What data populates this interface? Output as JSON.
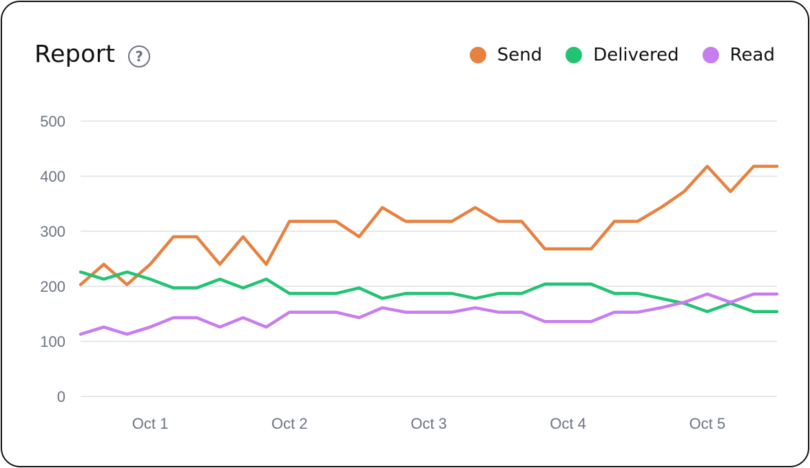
{
  "header": {
    "title": "Report",
    "help_icon": "question-circle-icon"
  },
  "legend": [
    {
      "label": "Send",
      "color": "#e8803f"
    },
    {
      "label": "Delivered",
      "color": "#22c373"
    },
    {
      "label": "Read",
      "color": "#c77cf0"
    }
  ],
  "chart_data": {
    "type": "line",
    "ylim": [
      0,
      500
    ],
    "yticks": [
      0,
      100,
      200,
      300,
      400,
      500
    ],
    "xticks": [
      {
        "label": "Oct 1",
        "at": 3
      },
      {
        "label": "Oct 2",
        "at": 9
      },
      {
        "label": "Oct 3",
        "at": 15
      },
      {
        "label": "Oct 4",
        "at": 21
      },
      {
        "label": "Oct 5",
        "at": 27
      }
    ],
    "grid": true,
    "legend_position": "top-right",
    "series": [
      {
        "name": "Send",
        "color": "#e8803f",
        "values": [
          203,
          240,
          203,
          240,
          290,
          290,
          240,
          290,
          240,
          318,
          318,
          318,
          290,
          343,
          318,
          318,
          318,
          343,
          318,
          318,
          268,
          268,
          268,
          318,
          318,
          343,
          372,
          418,
          372,
          418,
          418
        ]
      },
      {
        "name": "Delivered",
        "color": "#22c373",
        "values": [
          226,
          213,
          226,
          213,
          197,
          197,
          213,
          197,
          213,
          187,
          187,
          187,
          197,
          178,
          187,
          187,
          187,
          178,
          187,
          187,
          204,
          204,
          204,
          187,
          187,
          178,
          169,
          154,
          169,
          154,
          154
        ]
      },
      {
        "name": "Read",
        "color": "#c77cf0",
        "values": [
          113,
          126,
          113,
          126,
          143,
          143,
          126,
          143,
          126,
          153,
          153,
          153,
          143,
          161,
          153,
          153,
          153,
          161,
          153,
          153,
          136,
          136,
          136,
          153,
          153,
          161,
          171,
          186,
          171,
          186,
          186
        ]
      }
    ]
  }
}
